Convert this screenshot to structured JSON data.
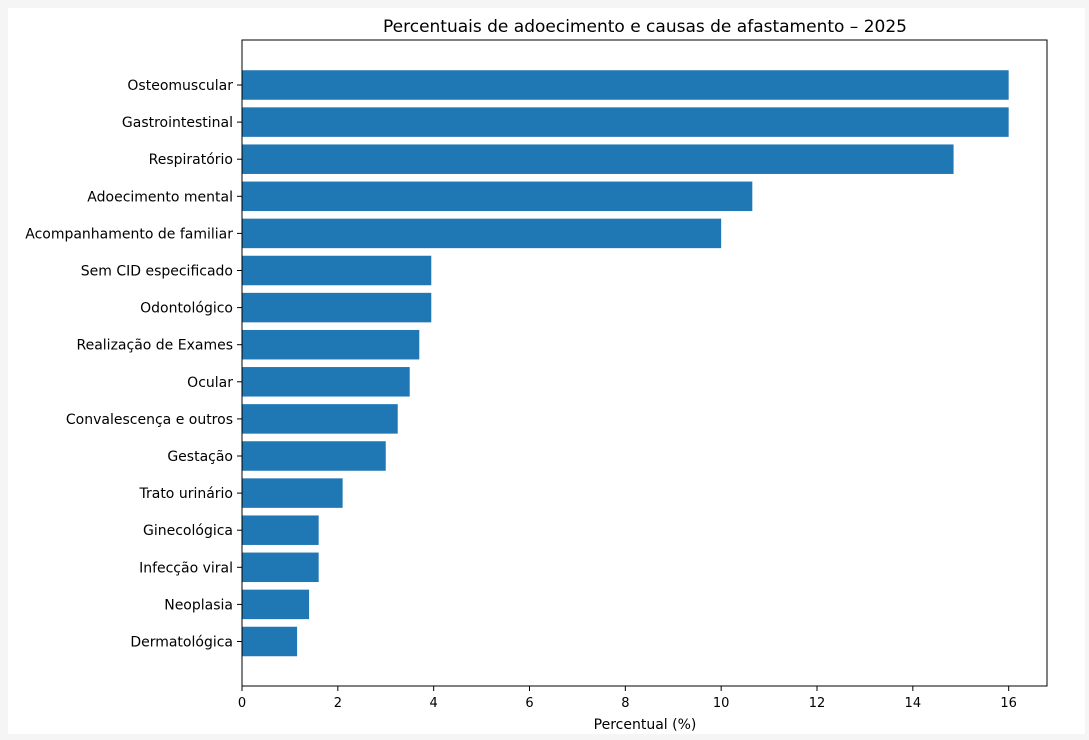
{
  "chart_data": {
    "type": "bar",
    "orientation": "horizontal",
    "title": "Percentuais de adoecimento e causas de afastamento – 2025",
    "xlabel": "Percentual (%)",
    "ylabel": "",
    "xlim": [
      0,
      16.8
    ],
    "xticks": [
      0,
      2,
      4,
      6,
      8,
      10,
      12,
      14,
      16
    ],
    "grid": false,
    "legend": "none",
    "bar_color": "#1f77b4",
    "categories": [
      "Osteomuscular",
      "Gastrointestinal",
      "Respiratório",
      "Adoecimento mental",
      "Acompanhamento de familiar",
      "Sem CID especificado",
      "Odontológico",
      "Realização de Exames",
      "Ocular",
      "Convalescença e outros",
      "Gestação",
      "Trato urinário",
      "Ginecológica",
      "Infecção viral",
      "Neoplasia",
      "Dermatológica"
    ],
    "values": [
      16.0,
      16.0,
      14.85,
      10.65,
      10.0,
      3.95,
      3.95,
      3.7,
      3.5,
      3.25,
      3.0,
      2.1,
      1.6,
      1.6,
      1.4,
      1.15
    ]
  }
}
